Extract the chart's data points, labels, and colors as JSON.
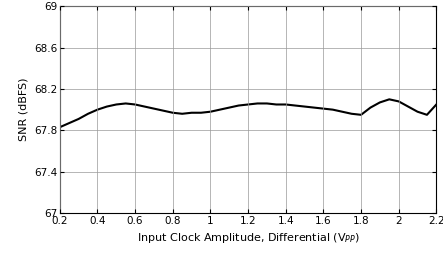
{
  "x": [
    0.2,
    0.25,
    0.3,
    0.35,
    0.4,
    0.45,
    0.5,
    0.55,
    0.6,
    0.65,
    0.7,
    0.75,
    0.8,
    0.85,
    0.9,
    0.95,
    1.0,
    1.05,
    1.1,
    1.15,
    1.2,
    1.25,
    1.3,
    1.35,
    1.4,
    1.45,
    1.5,
    1.55,
    1.6,
    1.65,
    1.7,
    1.75,
    1.8,
    1.85,
    1.9,
    1.95,
    2.0,
    2.05,
    2.1,
    2.15,
    2.2
  ],
  "y": [
    67.83,
    67.87,
    67.91,
    67.96,
    68.0,
    68.03,
    68.05,
    68.06,
    68.05,
    68.03,
    68.01,
    67.99,
    67.97,
    67.96,
    67.97,
    67.97,
    67.98,
    68.0,
    68.02,
    68.04,
    68.05,
    68.06,
    68.06,
    68.05,
    68.05,
    68.04,
    68.03,
    68.02,
    68.01,
    68.0,
    67.98,
    67.96,
    67.95,
    68.02,
    68.07,
    68.1,
    68.08,
    68.03,
    67.98,
    67.95,
    68.05
  ],
  "xlim": [
    0.2,
    2.2
  ],
  "ylim": [
    67.0,
    69.0
  ],
  "xticks": [
    0.2,
    0.4,
    0.6,
    0.8,
    1.0,
    1.2,
    1.4,
    1.6,
    1.8,
    2.0,
    2.2
  ],
  "yticks": [
    67.0,
    67.4,
    67.8,
    68.2,
    68.6,
    69.0
  ],
  "xtick_labels": [
    "0.2",
    "0.4",
    "0.6",
    "0.8",
    "1",
    "1.2",
    "1.4",
    "1.6",
    "1.8",
    "2",
    "2.2"
  ],
  "ytick_labels": [
    "67",
    "67.4",
    "67.8",
    "68.2",
    "68.6",
    "69"
  ],
  "xlabel": "Input Clock Amplitude, Differential (V$_{PP}$)",
  "ylabel": "SNR (dBFS)",
  "line_color": "#000000",
  "line_width": 1.5,
  "bg_color": "#ffffff",
  "grid_color": "#999999",
  "tick_fontsize": 7.5,
  "label_fontsize": 8.0
}
